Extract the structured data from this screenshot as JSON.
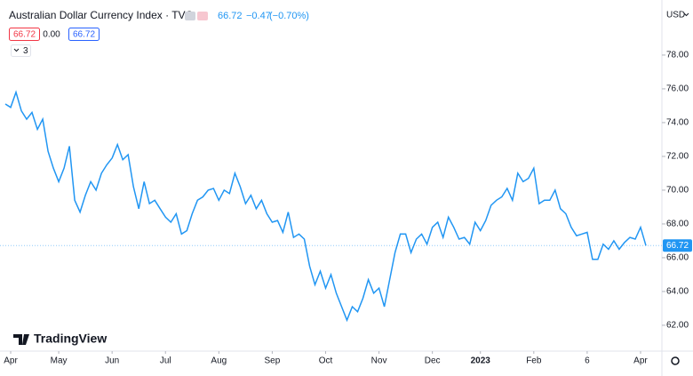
{
  "chart_data": {
    "type": "line",
    "title": "Australian Dollar Currency Index · TVC",
    "legend": {
      "price": "66.72",
      "change": "−0.47",
      "change_pct": "(−0.70%)"
    },
    "ohlc_boxes": [
      "66.72",
      "0.00",
      "66.72"
    ],
    "indicator_count": "3",
    "currency": "USD",
    "watermark": "TradingView",
    "last_value_label": "66.72",
    "color": "#2196f3",
    "grid": false,
    "values": [
      75.1,
      74.9,
      75.8,
      74.7,
      74.2,
      74.6,
      73.6,
      74.2,
      72.3,
      71.3,
      70.5,
      71.3,
      72.6,
      69.4,
      68.7,
      69.7,
      70.5,
      70.0,
      71.0,
      71.5,
      71.9,
      72.7,
      71.8,
      72.1,
      70.2,
      68.9,
      70.5,
      69.2,
      69.4,
      68.9,
      68.4,
      68.1,
      68.6,
      67.4,
      67.6,
      68.6,
      69.4,
      69.6,
      70.0,
      70.1,
      69.4,
      70.0,
      69.8,
      71.0,
      70.2,
      69.2,
      69.7,
      68.9,
      69.4,
      68.6,
      68.1,
      68.2,
      67.5,
      68.7,
      67.2,
      67.4,
      67.1,
      65.5,
      64.4,
      65.2,
      64.2,
      65.0,
      63.9,
      63.1,
      62.3,
      63.1,
      62.8,
      63.6,
      64.7,
      63.9,
      64.2,
      63.1,
      64.7,
      66.3,
      67.4,
      67.4,
      66.3,
      67.1,
      67.4,
      66.8,
      67.8,
      68.1,
      67.2,
      68.4,
      67.8,
      67.1,
      67.2,
      66.8,
      68.1,
      67.6,
      68.2,
      69.1,
      69.4,
      69.6,
      70.1,
      69.4,
      71.0,
      70.5,
      70.7,
      71.3,
      69.2,
      69.4,
      69.4,
      70.0,
      68.9,
      68.6,
      67.8,
      67.3,
      67.4,
      67.5,
      65.9,
      65.9,
      66.8,
      66.5,
      67.0,
      66.5,
      66.9,
      67.2,
      67.1,
      67.8,
      66.72
    ],
    "xlim": [
      -1,
      123
    ],
    "xticks": [
      {
        "value": 1,
        "label": "Apr"
      },
      {
        "value": 10,
        "label": "May"
      },
      {
        "value": 20,
        "label": "Jun"
      },
      {
        "value": 30,
        "label": "Jul"
      },
      {
        "value": 40,
        "label": "Aug"
      },
      {
        "value": 50,
        "label": "Sep"
      },
      {
        "value": 60,
        "label": "Oct"
      },
      {
        "value": 70,
        "label": "Nov"
      },
      {
        "value": 80,
        "label": "Dec"
      },
      {
        "value": 89,
        "label": "2023"
      },
      {
        "value": 99,
        "label": "Feb"
      },
      {
        "value": 109,
        "label": "6"
      },
      {
        "value": 119,
        "label": "Apr"
      }
    ],
    "ylim": [
      60.47,
      81.26
    ],
    "yticks": [
      {
        "value": 62,
        "label": "62.00"
      },
      {
        "value": 64,
        "label": "64.00"
      },
      {
        "value": 66,
        "label": "66.00"
      },
      {
        "value": 68,
        "label": "68.00"
      },
      {
        "value": 70,
        "label": "70.00"
      },
      {
        "value": 72,
        "label": "72.00"
      },
      {
        "value": 74,
        "label": "74.00"
      },
      {
        "value": 76,
        "label": "76.00"
      },
      {
        "value": 78,
        "label": "78.00"
      }
    ]
  }
}
